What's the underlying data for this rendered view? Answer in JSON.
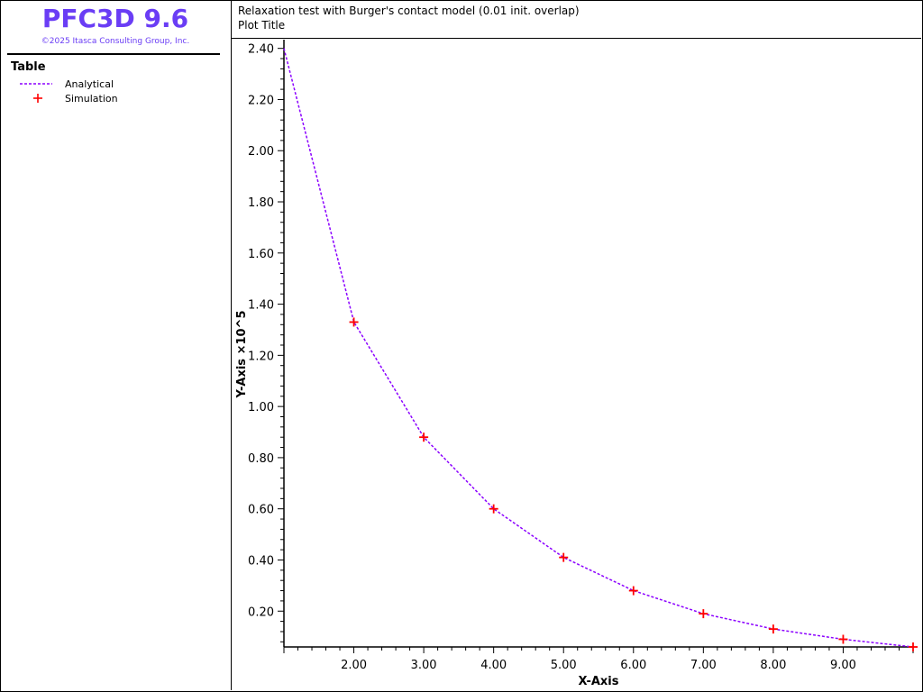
{
  "app": {
    "title": "PFC3D 9.6",
    "copyright": "©2025 Itasca Consulting Group, Inc."
  },
  "legend": {
    "heading": "Table",
    "items": [
      {
        "label": "Analytical",
        "style": "dashed-line",
        "color": "#8b00ff"
      },
      {
        "label": "Simulation",
        "style": "plus-marker",
        "color": "#ff0000"
      }
    ]
  },
  "plot_header": {
    "subtitle": "Relaxation test with Burger's contact model (0.01 init. overlap)",
    "title": "Plot Title"
  },
  "colors": {
    "brand": "#6a3df5",
    "analytical": "#8b00ff",
    "simulation": "#ff0000"
  },
  "chart_data": {
    "type": "line",
    "title": "Plot Title",
    "xlabel": "X-Axis",
    "ylabel": "Y-Axis  ×10^5",
    "xlim": [
      1.0,
      10.0
    ],
    "ylim": [
      0.06,
      2.42
    ],
    "x_ticks": [
      "2.00",
      "3.00",
      "4.00",
      "5.00",
      "6.00",
      "7.00",
      "8.00",
      "9.00"
    ],
    "y_ticks": [
      "0.20",
      "0.40",
      "0.60",
      "0.80",
      "1.00",
      "1.20",
      "1.40",
      "1.60",
      "1.80",
      "2.00",
      "2.20",
      "2.40"
    ],
    "grid": false,
    "legend_position": "left-panel",
    "series": [
      {
        "name": "Analytical",
        "kind": "line",
        "dash": true,
        "color": "#8b00ff",
        "x": [
          1,
          2,
          3,
          4,
          5,
          6,
          7,
          8,
          9,
          10
        ],
        "y": [
          2.4,
          1.33,
          0.88,
          0.6,
          0.41,
          0.28,
          0.19,
          0.13,
          0.09,
          0.06
        ]
      },
      {
        "name": "Simulation",
        "kind": "marker",
        "marker": "plus",
        "color": "#ff0000",
        "x": [
          2,
          3,
          4,
          5,
          6,
          7,
          8,
          9,
          10
        ],
        "y": [
          1.33,
          0.88,
          0.6,
          0.41,
          0.28,
          0.19,
          0.13,
          0.09,
          0.06
        ]
      }
    ]
  }
}
